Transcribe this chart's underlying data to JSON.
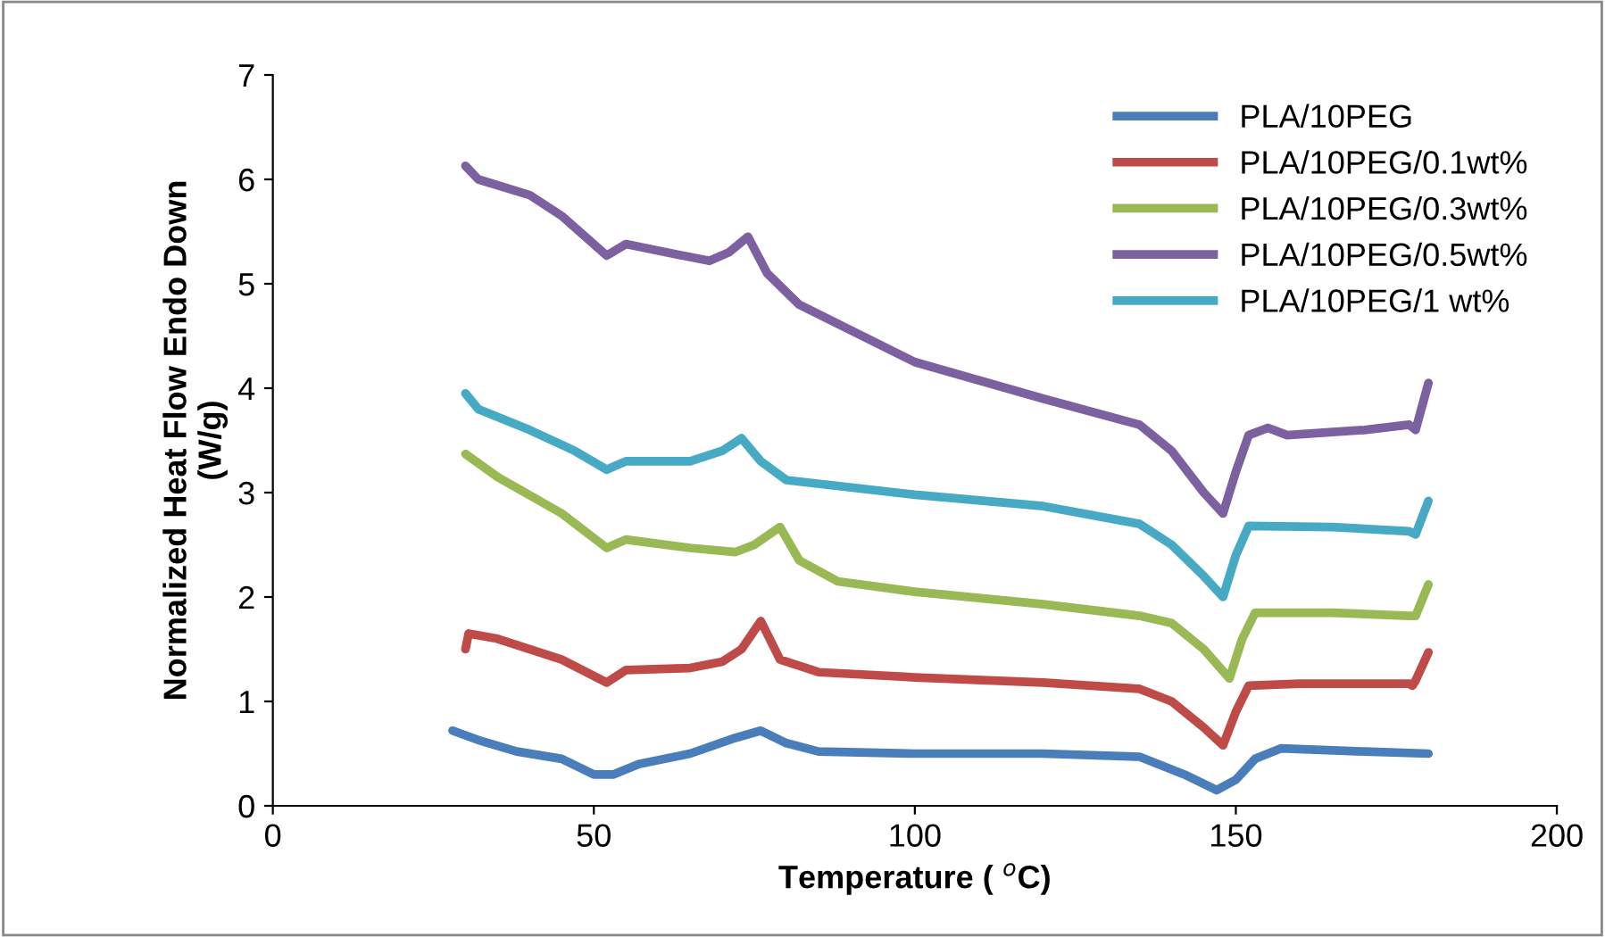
{
  "chart_data": {
    "type": "line",
    "xlabel": "Temperature ( $^{o}$C)",
    "ylabel": "Normalized Heat Flow Endo Down\n(W/g)",
    "xlim": [
      0,
      200
    ],
    "xticks": [
      0,
      50,
      100,
      150,
      200
    ],
    "ylim": [
      0,
      7
    ],
    "yticks": [
      0,
      1,
      2,
      3,
      4,
      5,
      6,
      7
    ],
    "grid": false,
    "legend": "top right",
    "marker": "none",
    "line_style": "solid",
    "series": [
      {
        "name": "PLA/10PEG",
        "color": "#4a7ebb",
        "x": [
          28,
          32,
          38,
          45,
          50,
          53,
          57,
          65,
          72,
          76,
          80,
          85,
          100,
          120,
          135,
          142,
          147,
          150,
          153,
          157,
          170,
          180
        ],
        "values": [
          0.72,
          0.63,
          0.52,
          0.45,
          0.3,
          0.3,
          0.4,
          0.5,
          0.65,
          0.72,
          0.6,
          0.52,
          0.5,
          0.5,
          0.47,
          0.3,
          0.15,
          0.25,
          0.45,
          0.55,
          0.52,
          0.5
        ]
      },
      {
        "name": "PLA/10PEG/0.1wt%",
        "color": "#be4b48",
        "x": [
          30,
          30.5,
          35,
          45,
          52,
          55,
          65,
          70,
          73,
          76,
          79,
          85,
          100,
          120,
          135,
          140,
          145,
          148,
          150,
          152,
          160,
          177,
          177.5,
          178,
          180
        ],
        "values": [
          1.5,
          1.65,
          1.6,
          1.4,
          1.18,
          1.3,
          1.32,
          1.38,
          1.5,
          1.77,
          1.4,
          1.28,
          1.23,
          1.18,
          1.12,
          1.0,
          0.75,
          0.58,
          0.9,
          1.15,
          1.17,
          1.17,
          1.15,
          1.2,
          1.47
        ]
      },
      {
        "name": "PLA/10PEG/0.3wt%",
        "color": "#98b954",
        "x": [
          30,
          35,
          45,
          52,
          55,
          65,
          72,
          75,
          79,
          82,
          88,
          100,
          120,
          135,
          140,
          145,
          149,
          151,
          153,
          165,
          177,
          178,
          180
        ],
        "values": [
          3.37,
          3.15,
          2.8,
          2.47,
          2.55,
          2.47,
          2.43,
          2.5,
          2.67,
          2.35,
          2.15,
          2.05,
          1.93,
          1.82,
          1.75,
          1.5,
          1.22,
          1.6,
          1.85,
          1.85,
          1.82,
          1.82,
          2.12
        ]
      },
      {
        "name": "PLA/10PEG/0.5wt%",
        "color": "#7d60a0",
        "x": [
          30,
          32,
          40,
          45,
          52,
          55,
          63,
          68,
          71,
          74,
          77,
          82,
          100,
          120,
          135,
          140,
          145,
          148,
          150,
          152,
          155,
          158,
          170,
          177,
          178,
          180
        ],
        "values": [
          6.13,
          6.0,
          5.85,
          5.65,
          5.27,
          5.38,
          5.28,
          5.22,
          5.3,
          5.45,
          5.1,
          4.8,
          4.25,
          3.9,
          3.65,
          3.4,
          3.0,
          2.8,
          3.2,
          3.55,
          3.62,
          3.55,
          3.6,
          3.65,
          3.6,
          4.05
        ]
      },
      {
        "name": "PLA/10PEG/1 wt%",
        "color": "#46aac5",
        "x": [
          30,
          32,
          40,
          47,
          52,
          55,
          65,
          70,
          73,
          76,
          80,
          100,
          120,
          135,
          140,
          145,
          148,
          150,
          152,
          165,
          177,
          178,
          180
        ],
        "values": [
          3.95,
          3.8,
          3.6,
          3.4,
          3.22,
          3.3,
          3.3,
          3.4,
          3.52,
          3.3,
          3.12,
          2.98,
          2.87,
          2.7,
          2.5,
          2.2,
          2.0,
          2.4,
          2.68,
          2.67,
          2.63,
          2.6,
          2.92
        ]
      }
    ]
  }
}
